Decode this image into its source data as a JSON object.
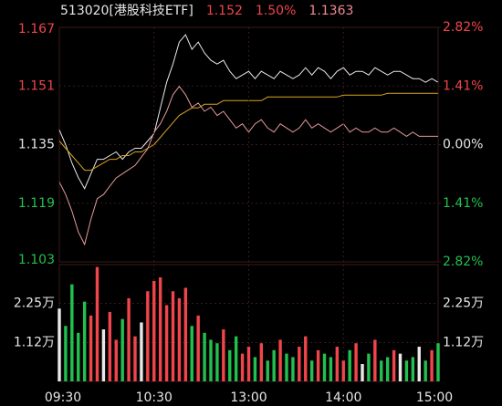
{
  "chart_data": [
    {
      "type": "line",
      "header": [
        {
          "text": "513020[港股科技ETF]",
          "color": "#e6e6e6"
        },
        {
          "text": "1.152",
          "color": "#f0454a"
        },
        {
          "text": "1.50%",
          "color": "#f0454a"
        },
        {
          "text": "1.1363",
          "color": "#f08a92"
        }
      ],
      "x": [
        0,
        4,
        8,
        12,
        16,
        20,
        24,
        28,
        32,
        36,
        40,
        44,
        48,
        52,
        56,
        60,
        64,
        68,
        72,
        76,
        80,
        84,
        88,
        92,
        96,
        100,
        104,
        108,
        112,
        116,
        120,
        124,
        128,
        132,
        136,
        140,
        144,
        148,
        152,
        156,
        160,
        164,
        168,
        172,
        176,
        180,
        184,
        188,
        192,
        196,
        200,
        204,
        208,
        212,
        216,
        220,
        224,
        228,
        232,
        236,
        240
      ],
      "xlim": [
        0,
        240
      ],
      "ylim": [
        1.103,
        1.167
      ],
      "yticks": [
        1.103,
        1.119,
        1.135,
        1.151,
        1.167
      ],
      "ytick_colors": [
        "#22c04e",
        "#22c04e",
        "#e6e6e6",
        "#f0454a",
        "#f0454a"
      ],
      "y2lim": [
        -2.82,
        2.82
      ],
      "y2ticks": [
        {
          "value": -2.82,
          "label": "2.82%"
        },
        {
          "value": -1.41,
          "label": "1.41%"
        },
        {
          "value": 0,
          "label": "0.00%"
        },
        {
          "value": 1.41,
          "label": "1.41%"
        },
        {
          "value": 2.82,
          "label": "2.82%"
        }
      ],
      "y2tick_colors": [
        "#22c04e",
        "#22c04e",
        "#e6e6e6",
        "#f0454a",
        "#f0454a"
      ],
      "grid": true,
      "series": [
        {
          "color": "#e8e8e8",
          "values": [
            1.139,
            1.135,
            1.13,
            1.126,
            1.123,
            1.127,
            1.131,
            1.131,
            1.132,
            1.133,
            1.131,
            1.133,
            1.134,
            1.134,
            1.136,
            1.138,
            1.145,
            1.152,
            1.157,
            1.163,
            1.165,
            1.161,
            1.163,
            1.16,
            1.158,
            1.157,
            1.158,
            1.155,
            1.153,
            1.154,
            1.155,
            1.153,
            1.155,
            1.154,
            1.153,
            1.155,
            1.154,
            1.153,
            1.154,
            1.156,
            1.154,
            1.156,
            1.155,
            1.153,
            1.155,
            1.156,
            1.154,
            1.155,
            1.155,
            1.154,
            1.156,
            1.155,
            1.154,
            1.155,
            1.155,
            1.154,
            1.153,
            1.153,
            1.152,
            1.153,
            1.152
          ]
        },
        {
          "color": "#d9a520",
          "values": [
            1.136,
            1.134,
            1.132,
            1.13,
            1.128,
            1.128,
            1.129,
            1.13,
            1.131,
            1.131,
            1.132,
            1.132,
            1.133,
            1.133,
            1.134,
            1.135,
            1.137,
            1.139,
            1.141,
            1.143,
            1.144,
            1.145,
            1.145,
            1.146,
            1.146,
            1.146,
            1.147,
            1.147,
            1.147,
            1.147,
            1.147,
            1.147,
            1.147,
            1.148,
            1.148,
            1.148,
            1.148,
            1.148,
            1.148,
            1.148,
            1.148,
            1.148,
            1.148,
            1.148,
            1.148,
            1.1485,
            1.1485,
            1.1485,
            1.1485,
            1.1485,
            1.1485,
            1.1485,
            1.149,
            1.149,
            1.149,
            1.149,
            1.149,
            1.149,
            1.149,
            1.149,
            1.149
          ]
        },
        {
          "color": "#e59a9a",
          "axis": "y2",
          "values": [
            -0.9,
            -1.2,
            -1.6,
            -2.1,
            -2.4,
            -1.8,
            -1.3,
            -1.2,
            -1.0,
            -0.8,
            -0.7,
            -0.6,
            -0.5,
            -0.3,
            -0.1,
            0.3,
            0.5,
            0.8,
            1.2,
            1.4,
            1.2,
            0.9,
            1.0,
            0.8,
            0.9,
            0.7,
            0.8,
            0.6,
            0.4,
            0.5,
            0.3,
            0.5,
            0.6,
            0.4,
            0.3,
            0.5,
            0.4,
            0.3,
            0.4,
            0.6,
            0.4,
            0.5,
            0.4,
            0.3,
            0.4,
            0.5,
            0.3,
            0.4,
            0.3,
            0.3,
            0.4,
            0.3,
            0.3,
            0.4,
            0.3,
            0.2,
            0.3,
            0.2,
            0.2,
            0.2,
            0.2
          ]
        }
      ]
    },
    {
      "type": "bar",
      "x": [
        0,
        4,
        8,
        12,
        16,
        20,
        24,
        28,
        32,
        36,
        40,
        44,
        48,
        52,
        56,
        60,
        64,
        68,
        72,
        76,
        80,
        84,
        88,
        92,
        96,
        100,
        104,
        108,
        112,
        116,
        120,
        124,
        128,
        132,
        136,
        140,
        144,
        148,
        152,
        156,
        160,
        164,
        168,
        172,
        176,
        180,
        184,
        188,
        192,
        196,
        200,
        204,
        208,
        212,
        216,
        220,
        224,
        228,
        232,
        236,
        240
      ],
      "xlim": [
        0,
        240
      ],
      "xticks": [
        {
          "value": 0,
          "label": "09:30"
        },
        {
          "value": 60,
          "label": "10:30"
        },
        {
          "value": 120,
          "label": "13:00"
        },
        {
          "value": 180,
          "label": "14:00"
        },
        {
          "value": 240,
          "label": "15:00"
        }
      ],
      "ylim": [
        0,
        3.37
      ],
      "yticks": [
        {
          "value": 1.12,
          "label": "1.12万"
        },
        {
          "value": 2.25,
          "label": "2.25万"
        }
      ],
      "values": [
        2.1,
        1.6,
        2.8,
        1.4,
        2.3,
        1.9,
        3.3,
        1.5,
        2.0,
        1.2,
        1.8,
        2.4,
        1.3,
        1.7,
        2.6,
        2.9,
        3.0,
        2.2,
        2.6,
        2.4,
        2.7,
        1.6,
        1.9,
        1.4,
        1.2,
        1.1,
        1.5,
        0.9,
        1.3,
        0.8,
        1.0,
        0.7,
        1.1,
        0.6,
        0.9,
        1.2,
        0.8,
        0.7,
        1.0,
        1.3,
        0.6,
        0.9,
        0.8,
        0.7,
        1.0,
        0.6,
        0.9,
        1.1,
        0.5,
        0.8,
        1.2,
        0.6,
        0.7,
        0.9,
        0.8,
        0.6,
        0.7,
        1.0,
        0.6,
        0.9,
        1.1
      ]
    }
  ]
}
